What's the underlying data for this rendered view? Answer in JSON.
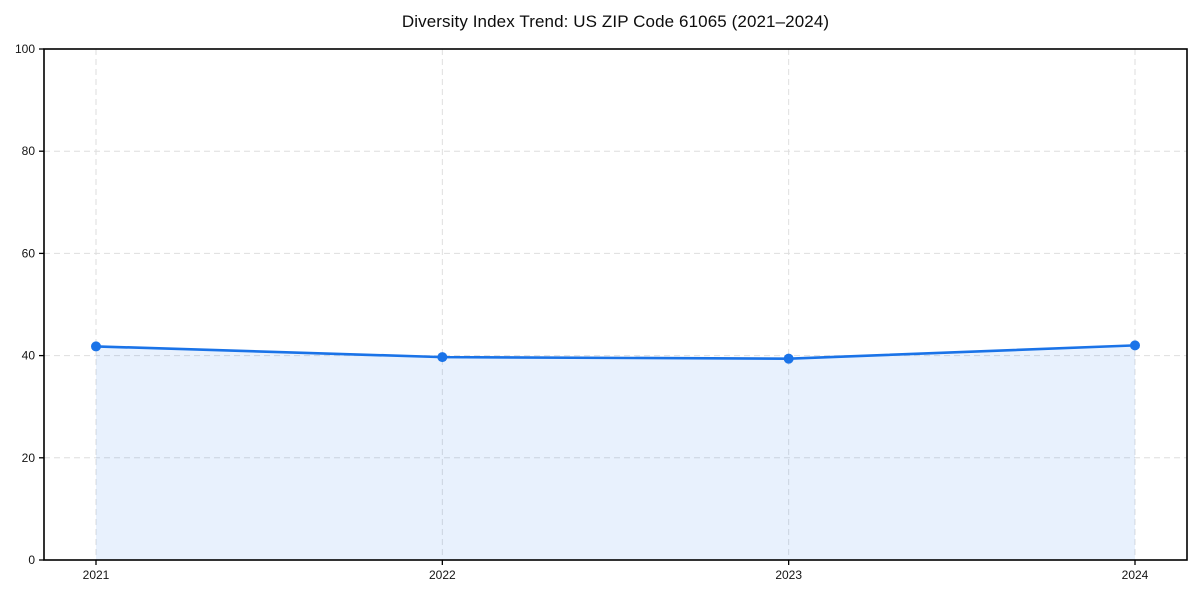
{
  "chart_data": {
    "type": "area",
    "title": "Diversity Index Trend: US ZIP Code 61065 (2021–2024)",
    "categories": [
      "2021",
      "2022",
      "2023",
      "2024"
    ],
    "values": [
      41.8,
      39.7,
      39.4,
      42.0
    ],
    "xlabel": "",
    "ylabel": "",
    "ylim": [
      0,
      100
    ],
    "yticks": [
      0,
      20,
      40,
      60,
      80,
      100
    ],
    "grid": true,
    "grid_style": "dashed",
    "legend": false,
    "marker": "circle",
    "marker_size": 5,
    "line_color": "#1a73e8",
    "fill_color": "rgba(26,115,232,0.10)",
    "grid_color": "#dedede",
    "axis_color": "#000000"
  }
}
